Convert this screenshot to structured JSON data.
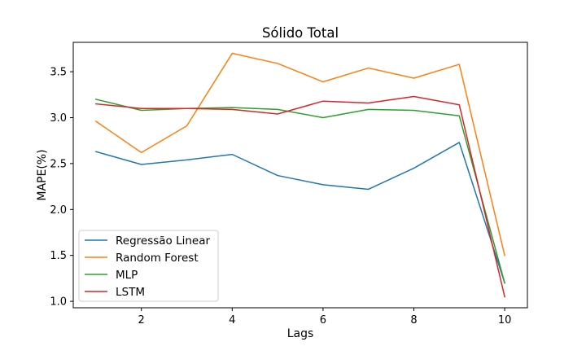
{
  "chart_data": {
    "type": "line",
    "title": "Sólido Total",
    "xlabel": "Lags",
    "ylabel": "MAPE(%)",
    "xlim": [
      0.5,
      10.5
    ],
    "ylim": [
      0.93,
      3.82
    ],
    "xticks": [
      2,
      4,
      6,
      8,
      10
    ],
    "yticks": [
      1.0,
      1.5,
      2.0,
      2.5,
      3.0,
      3.5
    ],
    "grid": false,
    "legend_position": "lower-left",
    "x": [
      1,
      2,
      3,
      4,
      5,
      6,
      7,
      8,
      9,
      10
    ],
    "series": [
      {
        "name": "Regressão Linear",
        "color": "#1f77b4",
        "values": [
          2.63,
          2.49,
          2.54,
          2.6,
          2.37,
          2.27,
          2.22,
          2.45,
          2.73,
          1.2
        ]
      },
      {
        "name": "Random Forest",
        "color": "#ff7f0e",
        "values": [
          2.96,
          2.62,
          2.91,
          3.7,
          3.59,
          3.39,
          3.54,
          3.43,
          3.58,
          1.5
        ]
      },
      {
        "name": "MLP",
        "color": "#2ca02c",
        "values": [
          3.2,
          3.08,
          3.1,
          3.11,
          3.09,
          3.0,
          3.09,
          3.08,
          3.02,
          1.2
        ]
      },
      {
        "name": "LSTM",
        "color": "#d62728",
        "values": [
          3.15,
          3.1,
          3.1,
          3.09,
          3.04,
          3.18,
          3.16,
          3.23,
          3.14,
          1.05
        ]
      }
    ]
  }
}
